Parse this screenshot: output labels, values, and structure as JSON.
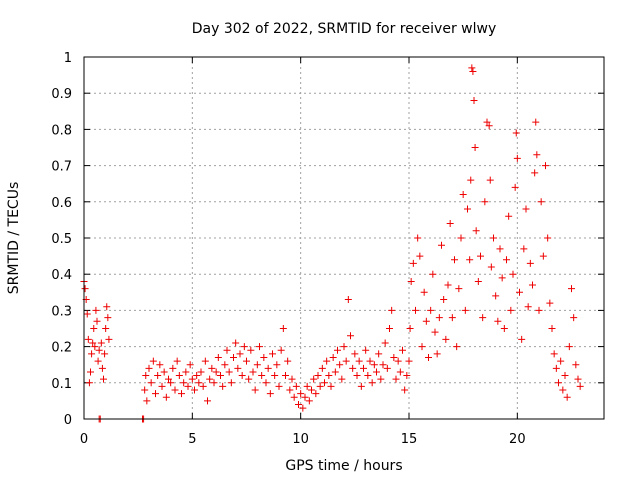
{
  "chart_data": {
    "type": "scatter",
    "title": "Day 302 of 2022, SRMTID for receiver wlwy",
    "xlabel": "GPS time / hours",
    "ylabel": "SRMTID / TECUs",
    "xlim": [
      0,
      24
    ],
    "ylim": [
      0,
      1
    ],
    "xticks": [
      0,
      5,
      10,
      15,
      20
    ],
    "xtick_labels": [
      "0",
      "5",
      "10",
      "15",
      "20"
    ],
    "yticks": [
      0,
      0.1,
      0.2,
      0.3,
      0.4,
      0.5,
      0.6,
      0.7,
      0.8,
      0.9,
      1
    ],
    "ytick_labels": [
      "0",
      "0.1",
      "0.2",
      "0.3",
      "0.4",
      "0.5",
      "0.6",
      "0.7",
      "0.8",
      "0.9",
      "1"
    ],
    "grid": true,
    "marker": "+",
    "color": "#ee0000",
    "series": [
      {
        "name": "SRMTID",
        "points": [
          [
            0.0,
            0.38
          ],
          [
            0.05,
            0.36
          ],
          [
            0.1,
            0.33
          ],
          [
            0.15,
            0.29
          ],
          [
            0.2,
            0.22
          ],
          [
            0.25,
            0.1
          ],
          [
            0.3,
            0.13
          ],
          [
            0.35,
            0.18
          ],
          [
            0.4,
            0.21
          ],
          [
            0.45,
            0.25
          ],
          [
            0.5,
            0.2
          ],
          [
            0.55,
            0.3
          ],
          [
            0.6,
            0.27
          ],
          [
            0.65,
            0.16
          ],
          [
            0.7,
            0.19
          ],
          [
            0.8,
            0.21
          ],
          [
            0.85,
            0.14
          ],
          [
            0.9,
            0.11
          ],
          [
            0.95,
            0.18
          ],
          [
            1.0,
            0.25
          ],
          [
            1.05,
            0.31
          ],
          [
            1.1,
            0.28
          ],
          [
            1.15,
            0.22
          ],
          [
            0.7,
            0.0
          ],
          [
            0.75,
            0.0
          ],
          [
            2.7,
            0.0
          ],
          [
            2.75,
            0.0
          ],
          [
            2.8,
            0.08
          ],
          [
            2.85,
            0.12
          ],
          [
            2.9,
            0.05
          ],
          [
            3.0,
            0.14
          ],
          [
            3.1,
            0.1
          ],
          [
            3.2,
            0.16
          ],
          [
            3.3,
            0.07
          ],
          [
            3.4,
            0.12
          ],
          [
            3.5,
            0.15
          ],
          [
            3.6,
            0.09
          ],
          [
            3.7,
            0.13
          ],
          [
            3.8,
            0.06
          ],
          [
            3.9,
            0.11
          ],
          [
            4.0,
            0.1
          ],
          [
            4.1,
            0.14
          ],
          [
            4.2,
            0.08
          ],
          [
            4.3,
            0.16
          ],
          [
            4.4,
            0.12
          ],
          [
            4.5,
            0.07
          ],
          [
            4.6,
            0.1
          ],
          [
            4.7,
            0.13
          ],
          [
            4.8,
            0.09
          ],
          [
            4.9,
            0.15
          ],
          [
            5.0,
            0.11
          ],
          [
            5.1,
            0.08
          ],
          [
            5.2,
            0.12
          ],
          [
            5.3,
            0.1
          ],
          [
            5.4,
            0.13
          ],
          [
            5.5,
            0.09
          ],
          [
            5.6,
            0.16
          ],
          [
            5.7,
            0.05
          ],
          [
            5.8,
            0.11
          ],
          [
            5.9,
            0.14
          ],
          [
            6.0,
            0.1
          ],
          [
            6.1,
            0.13
          ],
          [
            6.2,
            0.17
          ],
          [
            6.3,
            0.12
          ],
          [
            6.4,
            0.09
          ],
          [
            6.5,
            0.15
          ],
          [
            6.6,
            0.19
          ],
          [
            6.7,
            0.13
          ],
          [
            6.8,
            0.1
          ],
          [
            6.9,
            0.17
          ],
          [
            7.0,
            0.21
          ],
          [
            7.1,
            0.14
          ],
          [
            7.2,
            0.18
          ],
          [
            7.3,
            0.12
          ],
          [
            7.4,
            0.2
          ],
          [
            7.5,
            0.16
          ],
          [
            7.6,
            0.11
          ],
          [
            7.7,
            0.19
          ],
          [
            7.8,
            0.13
          ],
          [
            7.9,
            0.08
          ],
          [
            8.0,
            0.15
          ],
          [
            8.1,
            0.2
          ],
          [
            8.2,
            0.12
          ],
          [
            8.3,
            0.17
          ],
          [
            8.4,
            0.1
          ],
          [
            8.5,
            0.14
          ],
          [
            8.6,
            0.07
          ],
          [
            8.7,
            0.18
          ],
          [
            8.8,
            0.12
          ],
          [
            8.9,
            0.15
          ],
          [
            9.0,
            0.09
          ],
          [
            9.1,
            0.19
          ],
          [
            9.2,
            0.25
          ],
          [
            9.3,
            0.12
          ],
          [
            9.4,
            0.16
          ],
          [
            9.5,
            0.08
          ],
          [
            9.6,
            0.11
          ],
          [
            9.7,
            0.06
          ],
          [
            9.8,
            0.09
          ],
          [
            9.9,
            0.04
          ],
          [
            10.0,
            0.07
          ],
          [
            10.1,
            0.03
          ],
          [
            10.2,
            0.06
          ],
          [
            10.3,
            0.09
          ],
          [
            10.4,
            0.05
          ],
          [
            10.5,
            0.08
          ],
          [
            10.6,
            0.11
          ],
          [
            10.7,
            0.07
          ],
          [
            10.8,
            0.12
          ],
          [
            10.9,
            0.09
          ],
          [
            11.0,
            0.14
          ],
          [
            11.1,
            0.1
          ],
          [
            11.2,
            0.16
          ],
          [
            11.3,
            0.12
          ],
          [
            11.4,
            0.09
          ],
          [
            11.5,
            0.17
          ],
          [
            11.6,
            0.13
          ],
          [
            11.7,
            0.19
          ],
          [
            11.8,
            0.15
          ],
          [
            11.9,
            0.11
          ],
          [
            12.0,
            0.2
          ],
          [
            12.1,
            0.16
          ],
          [
            12.2,
            0.33
          ],
          [
            12.3,
            0.23
          ],
          [
            12.4,
            0.14
          ],
          [
            12.5,
            0.18
          ],
          [
            12.6,
            0.12
          ],
          [
            12.7,
            0.16
          ],
          [
            12.8,
            0.09
          ],
          [
            12.9,
            0.14
          ],
          [
            13.0,
            0.19
          ],
          [
            13.1,
            0.12
          ],
          [
            13.2,
            0.16
          ],
          [
            13.3,
            0.1
          ],
          [
            13.4,
            0.15
          ],
          [
            13.5,
            0.13
          ],
          [
            13.6,
            0.18
          ],
          [
            13.7,
            0.11
          ],
          [
            13.8,
            0.15
          ],
          [
            13.9,
            0.21
          ],
          [
            14.0,
            0.14
          ],
          [
            14.1,
            0.25
          ],
          [
            14.2,
            0.3
          ],
          [
            14.3,
            0.17
          ],
          [
            14.4,
            0.11
          ],
          [
            14.5,
            0.16
          ],
          [
            14.6,
            0.13
          ],
          [
            14.7,
            0.19
          ],
          [
            14.8,
            0.08
          ],
          [
            14.9,
            0.12
          ],
          [
            15.0,
            0.16
          ],
          [
            15.05,
            0.25
          ],
          [
            15.1,
            0.38
          ],
          [
            15.2,
            0.43
          ],
          [
            15.3,
            0.3
          ],
          [
            15.4,
            0.5
          ],
          [
            15.5,
            0.45
          ],
          [
            15.6,
            0.2
          ],
          [
            15.7,
            0.35
          ],
          [
            15.8,
            0.27
          ],
          [
            15.9,
            0.17
          ],
          [
            16.0,
            0.3
          ],
          [
            16.1,
            0.4
          ],
          [
            16.2,
            0.24
          ],
          [
            16.3,
            0.18
          ],
          [
            16.4,
            0.28
          ],
          [
            16.5,
            0.48
          ],
          [
            16.6,
            0.33
          ],
          [
            16.7,
            0.22
          ],
          [
            16.8,
            0.37
          ],
          [
            16.9,
            0.54
          ],
          [
            17.0,
            0.28
          ],
          [
            17.1,
            0.44
          ],
          [
            17.2,
            0.2
          ],
          [
            17.3,
            0.36
          ],
          [
            17.4,
            0.5
          ],
          [
            17.5,
            0.62
          ],
          [
            17.6,
            0.3
          ],
          [
            17.7,
            0.58
          ],
          [
            17.8,
            0.44
          ],
          [
            17.85,
            0.66
          ],
          [
            17.9,
            0.97
          ],
          [
            17.95,
            0.96
          ],
          [
            18.0,
            0.88
          ],
          [
            18.05,
            0.75
          ],
          [
            18.1,
            0.52
          ],
          [
            18.2,
            0.38
          ],
          [
            18.3,
            0.45
          ],
          [
            18.4,
            0.28
          ],
          [
            18.5,
            0.6
          ],
          [
            18.6,
            0.82
          ],
          [
            18.7,
            0.81
          ],
          [
            18.75,
            0.66
          ],
          [
            18.8,
            0.42
          ],
          [
            18.9,
            0.5
          ],
          [
            19.0,
            0.34
          ],
          [
            19.1,
            0.27
          ],
          [
            19.2,
            0.47
          ],
          [
            19.3,
            0.39
          ],
          [
            19.4,
            0.25
          ],
          [
            19.5,
            0.44
          ],
          [
            19.6,
            0.56
          ],
          [
            19.7,
            0.3
          ],
          [
            19.8,
            0.4
          ],
          [
            19.9,
            0.64
          ],
          [
            19.95,
            0.79
          ],
          [
            20.0,
            0.72
          ],
          [
            20.1,
            0.35
          ],
          [
            20.2,
            0.22
          ],
          [
            20.3,
            0.47
          ],
          [
            20.4,
            0.58
          ],
          [
            20.5,
            0.31
          ],
          [
            20.6,
            0.43
          ],
          [
            20.7,
            0.37
          ],
          [
            20.8,
            0.68
          ],
          [
            20.85,
            0.82
          ],
          [
            20.9,
            0.73
          ],
          [
            21.0,
            0.3
          ],
          [
            21.1,
            0.6
          ],
          [
            21.2,
            0.45
          ],
          [
            21.3,
            0.7
          ],
          [
            21.4,
            0.5
          ],
          [
            21.5,
            0.32
          ],
          [
            21.6,
            0.25
          ],
          [
            21.7,
            0.18
          ],
          [
            21.8,
            0.14
          ],
          [
            21.9,
            0.1
          ],
          [
            22.0,
            0.16
          ],
          [
            22.1,
            0.08
          ],
          [
            22.2,
            0.12
          ],
          [
            22.3,
            0.06
          ],
          [
            22.4,
            0.2
          ],
          [
            22.5,
            0.36
          ],
          [
            22.6,
            0.28
          ],
          [
            22.7,
            0.15
          ],
          [
            22.8,
            0.11
          ],
          [
            22.9,
            0.09
          ]
        ]
      }
    ]
  }
}
